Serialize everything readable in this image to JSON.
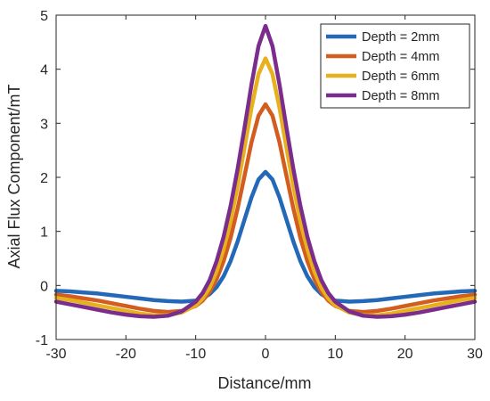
{
  "chart_data": {
    "type": "line",
    "title": "",
    "xlabel": "Distance/mm",
    "ylabel": "Axial Flux Component/mT",
    "xlim": [
      -30,
      30
    ],
    "ylim": [
      -1,
      5
    ],
    "x_ticks": [
      -30,
      -20,
      -10,
      0,
      10,
      20,
      30
    ],
    "y_ticks": [
      -1,
      0,
      1,
      2,
      3,
      4,
      5
    ],
    "grid": false,
    "legend_position": "top-right",
    "x": [
      -30,
      -28,
      -26,
      -24,
      -22,
      -20,
      -18,
      -16,
      -14,
      -12,
      -10,
      -9,
      -8,
      -7,
      -6,
      -5,
      -4,
      -3,
      -2,
      -1,
      0,
      1,
      2,
      3,
      4,
      5,
      6,
      7,
      8,
      9,
      10,
      12,
      14,
      16,
      18,
      20,
      22,
      24,
      26,
      28,
      30
    ],
    "series": [
      {
        "name": "Depth = 2mm",
        "color": "#2469b8",
        "values": [
          -0.1,
          -0.11,
          -0.13,
          -0.15,
          -0.18,
          -0.21,
          -0.24,
          -0.27,
          -0.29,
          -0.3,
          -0.28,
          -0.24,
          -0.16,
          -0.03,
          0.17,
          0.45,
          0.81,
          1.22,
          1.63,
          1.96,
          2.1,
          1.96,
          1.63,
          1.22,
          0.81,
          0.45,
          0.17,
          -0.03,
          -0.16,
          -0.24,
          -0.28,
          -0.3,
          -0.29,
          -0.27,
          -0.24,
          -0.21,
          -0.18,
          -0.15,
          -0.13,
          -0.11,
          -0.1
        ]
      },
      {
        "name": "Depth = 4mm",
        "color": "#d35d1f",
        "values": [
          -0.17,
          -0.2,
          -0.24,
          -0.28,
          -0.33,
          -0.38,
          -0.43,
          -0.47,
          -0.49,
          -0.47,
          -0.38,
          -0.28,
          -0.12,
          0.12,
          0.45,
          0.88,
          1.42,
          2.03,
          2.65,
          3.14,
          3.35,
          3.14,
          2.65,
          2.03,
          1.42,
          0.88,
          0.45,
          0.12,
          -0.12,
          -0.28,
          -0.38,
          -0.47,
          -0.49,
          -0.47,
          -0.43,
          -0.38,
          -0.33,
          -0.28,
          -0.24,
          -0.2,
          -0.17
        ]
      },
      {
        "name": "Depth = 6mm",
        "color": "#e6b11d",
        "values": [
          -0.23,
          -0.27,
          -0.32,
          -0.37,
          -0.42,
          -0.47,
          -0.52,
          -0.55,
          -0.55,
          -0.5,
          -0.37,
          -0.24,
          -0.04,
          0.26,
          0.67,
          1.19,
          1.83,
          2.55,
          3.29,
          3.91,
          4.2,
          3.91,
          3.29,
          2.55,
          1.83,
          1.19,
          0.67,
          0.26,
          -0.04,
          -0.24,
          -0.37,
          -0.5,
          -0.55,
          -0.55,
          -0.52,
          -0.47,
          -0.42,
          -0.37,
          -0.32,
          -0.27,
          -0.23
        ]
      },
      {
        "name": "Depth = 8mm",
        "color": "#7b2d8e",
        "values": [
          -0.3,
          -0.35,
          -0.4,
          -0.45,
          -0.5,
          -0.54,
          -0.57,
          -0.58,
          -0.56,
          -0.48,
          -0.3,
          -0.14,
          0.1,
          0.45,
          0.9,
          1.47,
          2.15,
          2.92,
          3.72,
          4.43,
          4.8,
          4.43,
          3.72,
          2.92,
          2.15,
          1.47,
          0.9,
          0.45,
          0.1,
          -0.14,
          -0.3,
          -0.48,
          -0.56,
          -0.58,
          -0.57,
          -0.54,
          -0.5,
          -0.45,
          -0.4,
          -0.35,
          -0.3
        ]
      }
    ]
  }
}
